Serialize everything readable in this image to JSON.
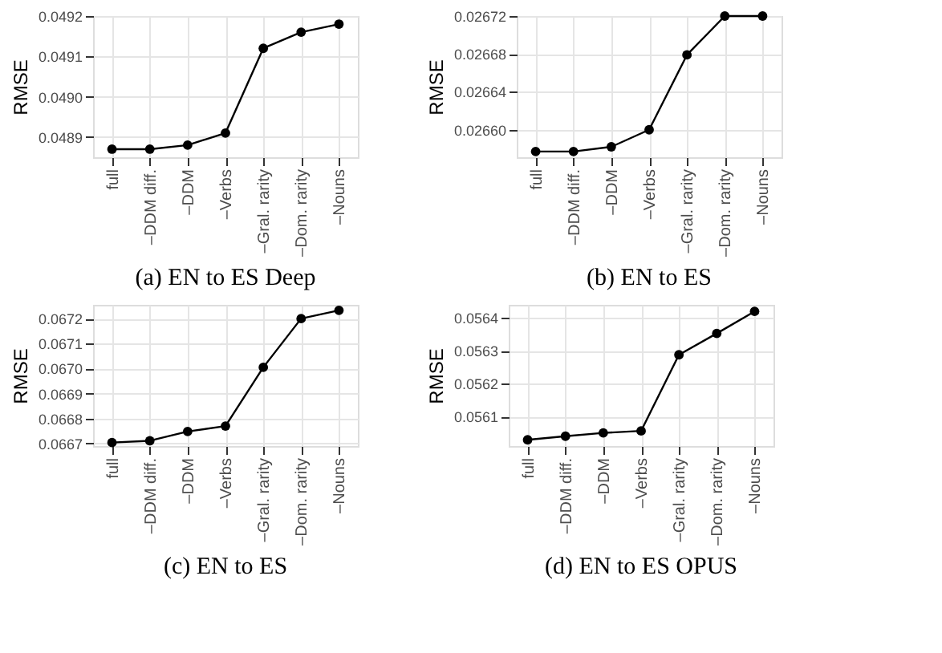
{
  "chart_data": [
    {
      "type": "line",
      "title": "(a) EN to ES Deep",
      "ylabel": "RMSE",
      "categories": [
        "full",
        "–DDM diff.",
        "–DDM",
        "–Verbs",
        "–Gral. rarity",
        "–Dom. rarity",
        "–Nouns"
      ],
      "series": [
        {
          "color": "#000000",
          "values": [
            0.04887,
            0.04887,
            0.04888,
            0.04891,
            0.04912,
            0.04916,
            0.04918
          ]
        }
      ],
      "ylim": [
        0.04885,
        0.0492
      ],
      "yticks": [
        0.0489,
        {
          "value": 0.049,
          "label": "0.0490"
        },
        0.0491,
        0.0492
      ],
      "grid": true,
      "marker": "circle",
      "line_style": "solid"
    },
    {
      "type": "line",
      "title": "(b) EN to ES",
      "ylabel": "RMSE",
      "categories": [
        "full",
        "–DDM diff.",
        "–DDM",
        "–Verbs",
        "–Gral. rarity",
        "–Dom. rarity",
        "–Nouns"
      ],
      "series": [
        {
          "color": "#000000",
          "values": [
            0.026577,
            0.026577,
            0.026582,
            0.0266,
            0.026679,
            0.02672,
            0.02672
          ]
        }
      ],
      "ylim": [
        0.026571,
        0.02672
      ],
      "yticks": [
        {
          "value": 0.0266,
          "label": "0.02660"
        },
        0.02664,
        0.02668,
        0.02672
      ],
      "grid": true,
      "marker": "circle",
      "line_style": "solid"
    },
    {
      "type": "line",
      "title": "(c) EN to ES",
      "ylabel": "RMSE",
      "categories": [
        "full",
        "–DDM diff.",
        "–DDM",
        "–Verbs",
        "–Gral. rarity",
        "–Dom. rarity",
        "–Nouns"
      ],
      "series": [
        {
          "color": "#000000",
          "values": [
            0.066704,
            0.066711,
            0.066748,
            0.06677,
            0.067005,
            0.0672,
            0.067233
          ]
        }
      ],
      "ylim": [
        0.06669,
        0.067255
      ],
      "yticks": [
        0.0667,
        0.0668,
        0.0669,
        {
          "value": 0.067,
          "label": "0.0670"
        },
        0.0671,
        0.0672
      ],
      "grid": true,
      "marker": "circle",
      "line_style": "solid"
    },
    {
      "type": "line",
      "title": "(d) EN to ES OPUS",
      "ylabel": "RMSE",
      "categories": [
        "full",
        "–DDM diff.",
        "–DDM",
        "–Verbs",
        "–Gral. rarity",
        "–Dom. rarity",
        "–Nouns"
      ],
      "series": [
        {
          "color": "#000000",
          "values": [
            0.056029,
            0.05604,
            0.05605,
            0.056056,
            0.056288,
            0.056353,
            0.05642
          ]
        }
      ],
      "ylim": [
        0.05601,
        0.05644
      ],
      "yticks": [
        0.0561,
        0.0562,
        0.0563,
        0.0564
      ],
      "grid": true,
      "marker": "circle",
      "line_style": "solid"
    }
  ]
}
